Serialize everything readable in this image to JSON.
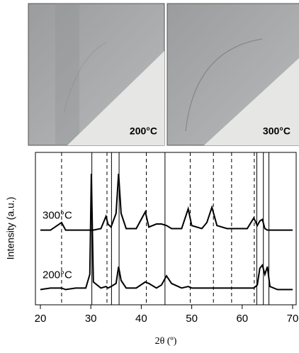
{
  "images": [
    {
      "label": "200°C"
    },
    {
      "label": "300°C"
    }
  ],
  "chart_data": {
    "type": "line",
    "xlabel": "2θ (º)",
    "ylabel": "Intensity (a.u.)",
    "x": [
      20,
      22,
      24.2,
      25,
      27,
      29,
      29.8,
      30.1,
      30.5,
      32,
      33,
      33.4,
      34,
      35,
      35.5,
      36,
      37,
      39,
      40.8,
      41.5,
      43,
      44,
      45,
      46,
      48,
      49.3,
      50,
      52,
      53,
      54,
      55,
      57,
      59,
      61,
      62.3,
      63,
      63.5,
      64,
      64.5,
      65,
      65.5,
      67,
      70
    ],
    "series": [
      {
        "name": "300°C",
        "color": "#000000",
        "values": [
          49,
          49,
          54,
          49,
          49,
          49,
          49,
          49,
          49,
          50,
          58,
          53,
          51,
          60,
          86,
          60,
          50,
          50,
          61,
          51,
          53,
          53,
          52,
          50,
          50,
          63,
          52,
          50,
          54,
          64,
          52,
          50,
          50,
          50,
          57,
          52,
          55,
          56,
          50,
          49,
          49,
          49,
          49
        ]
      },
      {
        "name": "200°C",
        "color": "#000000",
        "values": [
          10,
          11,
          11,
          10,
          11,
          11,
          20,
          86,
          15,
          11,
          12,
          11,
          12,
          14,
          25,
          16,
          11,
          11,
          15,
          14,
          11,
          13,
          19,
          14,
          11,
          12,
          11,
          11,
          11,
          11,
          11,
          11,
          11,
          11,
          11,
          13,
          24,
          26,
          20,
          25,
          12,
          10,
          10
        ]
      }
    ],
    "dashed_lines": [
      24.2,
      33.2,
      41,
      49.7,
      54.3,
      57.9,
      62.4
    ],
    "solid_lines": [
      30.2,
      34.1,
      35.6,
      44.7,
      62.9,
      64.2,
      65.3
    ],
    "xlim": [
      20,
      70
    ],
    "xticks": [
      20,
      30,
      40,
      50,
      60,
      70
    ],
    "ylim": [
      0,
      100
    ]
  }
}
